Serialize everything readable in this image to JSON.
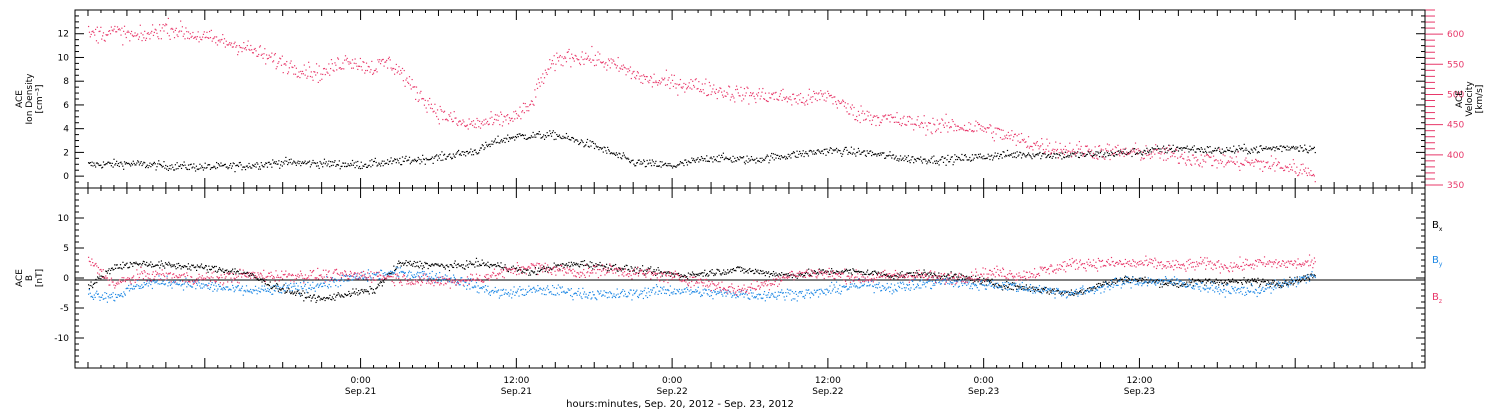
{
  "colors": {
    "black": "#000000",
    "pink": "#e8386a",
    "blue": "#1e88e5",
    "axis": "#000000"
  },
  "chart_data": [
    {
      "type": "scatter",
      "panel": "top",
      "left_axis": {
        "label_lines": [
          "ACE",
          "Ion Density",
          "[cm⁻³]"
        ],
        "ylim": [
          -1,
          14
        ],
        "major_ticks": [
          0,
          2,
          4,
          6,
          8,
          10,
          12
        ],
        "tick_labels": [
          "0",
          "2",
          "4",
          "6",
          "8",
          "10",
          "12"
        ]
      },
      "right_axis": {
        "label_lines": [
          "ACE",
          "Velocity",
          "[km/s]"
        ],
        "ylim": [
          345,
          640
        ],
        "major_ticks": [
          350,
          400,
          450,
          500,
          550,
          600
        ],
        "tick_labels": [
          "350",
          "400",
          "450",
          "500",
          "550",
          "600"
        ],
        "color": "pink"
      },
      "series": [
        {
          "color": "black",
          "axis": "left",
          "x_hours": [
            -21,
            -18,
            -15,
            -12,
            -9,
            -6,
            -3,
            0,
            3,
            6,
            9,
            10.5,
            12,
            15,
            18,
            21,
            24,
            27,
            30,
            33,
            36,
            39,
            42,
            45,
            48,
            51,
            54,
            57,
            60,
            63,
            66,
            69,
            72,
            73.5
          ],
          "y": [
            1.0,
            1.1,
            0.9,
            0.8,
            0.9,
            1.2,
            1.1,
            1.0,
            1.3,
            1.6,
            2.2,
            3.0,
            3.4,
            3.5,
            2.6,
            1.2,
            0.9,
            1.6,
            1.4,
            1.8,
            2.2,
            2.0,
            1.5,
            1.4,
            1.7,
            1.9,
            1.8,
            1.9,
            2.1,
            2.4,
            2.2,
            2.3,
            2.5,
            2.3
          ],
          "scatter": 0.35
        },
        {
          "color": "pink",
          "axis": "right",
          "x_hours": [
            -21,
            -19,
            -17,
            -15,
            -13,
            -11,
            -9,
            -7,
            -5,
            -3,
            -1,
            0,
            1,
            2,
            3,
            4,
            6,
            8,
            10,
            12,
            13,
            14,
            15,
            16,
            18,
            20,
            22,
            24,
            26,
            28,
            30,
            32,
            34,
            36,
            38,
            40,
            42,
            44,
            46,
            48,
            50,
            52,
            54,
            56,
            58,
            60,
            62,
            64,
            66,
            68,
            70,
            72,
            73.5
          ],
          "y": [
            600,
            605,
            595,
            612,
            600,
            590,
            580,
            560,
            545,
            535,
            560,
            550,
            545,
            555,
            540,
            510,
            470,
            450,
            455,
            465,
            480,
            530,
            555,
            565,
            560,
            545,
            525,
            520,
            515,
            505,
            500,
            498,
            492,
            500,
            470,
            462,
            455,
            450,
            448,
            445,
            430,
            418,
            410,
            408,
            405,
            405,
            402,
            395,
            392,
            388,
            385,
            378,
            372
          ],
          "scatter": 14
        }
      ]
    },
    {
      "type": "scatter",
      "panel": "bottom",
      "left_axis": {
        "label_lines": [
          "ACE",
          "B",
          "[nT]"
        ],
        "ylim": [
          -15,
          15
        ],
        "major_ticks": [
          -10,
          -5,
          0,
          5,
          10
        ],
        "tick_labels": [
          "-10",
          "-5",
          "0",
          "5",
          "10"
        ]
      },
      "legend": [
        {
          "name": "B",
          "sub": "x",
          "color": "black"
        },
        {
          "name": "B",
          "sub": "y",
          "color": "blue"
        },
        {
          "name": "B",
          "sub": "z",
          "color": "pink"
        }
      ],
      "series": [
        {
          "name": "Bx",
          "color": "black",
          "x_hours": [
            -21,
            -19,
            -17,
            -15,
            -13,
            -11,
            -9,
            -7,
            -5,
            -3,
            -1,
            1,
            3,
            5,
            7,
            9,
            11,
            13,
            15,
            17,
            19,
            21,
            23,
            25,
            27,
            29,
            31,
            33,
            35,
            37,
            39,
            41,
            43,
            45,
            47,
            49,
            51,
            53,
            55,
            57,
            59,
            61,
            63,
            65,
            67,
            69,
            71,
            73.5
          ],
          "y": [
            -1.5,
            2.0,
            2.5,
            2.2,
            2.0,
            1.5,
            1.0,
            -1.0,
            -2.5,
            -3.5,
            -2.5,
            -2.0,
            2.5,
            2.3,
            2.0,
            2.5,
            2.0,
            1.0,
            2.0,
            2.5,
            2.0,
            1.5,
            1.0,
            0.5,
            1.0,
            1.5,
            1.0,
            0.5,
            1.0,
            1.2,
            1.0,
            0.5,
            0.8,
            0.5,
            0.0,
            -1.0,
            -1.5,
            -2.0,
            -2.5,
            -1.0,
            0.0,
            -0.5,
            -1.0,
            -0.5,
            -0.5,
            -0.5,
            -0.8,
            0.5
          ],
          "scatter": 0.6
        },
        {
          "name": "By",
          "color": "blue",
          "x_hours": [
            -21,
            -19,
            -17,
            -15,
            -13,
            -11,
            -9,
            -7,
            -5,
            -3,
            -1,
            1,
            3,
            5,
            7,
            9,
            11,
            13,
            15,
            17,
            19,
            21,
            23,
            25,
            27,
            29,
            31,
            33,
            35,
            37,
            39,
            41,
            43,
            45,
            47,
            49,
            51,
            53,
            55,
            57,
            59,
            61,
            63,
            65,
            67,
            69,
            71,
            73.5
          ],
          "y": [
            -2.5,
            -3.0,
            -1.0,
            -0.5,
            -1.0,
            -1.5,
            -2.0,
            -2.0,
            -1.5,
            -1.0,
            0.0,
            0.5,
            1.0,
            0.5,
            0.0,
            -1.5,
            -2.5,
            -2.0,
            -2.0,
            -2.5,
            -2.8,
            -2.5,
            -2.0,
            -2.0,
            -2.5,
            -2.5,
            -2.8,
            -2.5,
            -2.5,
            -1.5,
            -1.0,
            -1.5,
            -1.0,
            -0.5,
            -1.0,
            -1.0,
            -1.5,
            -2.0,
            -2.5,
            -1.5,
            -0.5,
            -0.5,
            -0.5,
            -1.5,
            -2.0,
            -2.0,
            -1.0,
            0.5
          ],
          "scatter": 0.9
        },
        {
          "name": "Bz",
          "color": "pink",
          "x_hours": [
            -21,
            -19,
            -17,
            -15,
            -13,
            -11,
            -9,
            -7,
            -5,
            -3,
            -1,
            1,
            3,
            5,
            7,
            9,
            11,
            13,
            15,
            17,
            19,
            21,
            23,
            25,
            27,
            29,
            31,
            33,
            35,
            37,
            39,
            41,
            43,
            45,
            47,
            49,
            51,
            53,
            55,
            57,
            59,
            61,
            63,
            65,
            67,
            69,
            71,
            73.5
          ],
          "y": [
            3.0,
            -1.0,
            0.5,
            0.5,
            0.0,
            0.0,
            0.5,
            0.5,
            0.5,
            0.5,
            0.5,
            0.5,
            0.0,
            -0.5,
            -0.5,
            0.0,
            1.0,
            2.0,
            1.5,
            1.0,
            1.5,
            1.0,
            0.5,
            0.0,
            -1.0,
            -2.0,
            -1.0,
            0.5,
            1.0,
            0.5,
            0.0,
            0.5,
            0.5,
            0.0,
            0.5,
            1.0,
            0.5,
            1.5,
            2.5,
            2.5,
            2.5,
            2.5,
            2.0,
            2.5,
            2.0,
            2.5,
            2.5,
            2.5
          ],
          "scatter": 1.0
        }
      ]
    }
  ],
  "x_axis": {
    "range_hours": [
      -22,
      82
    ],
    "ticks": [
      {
        "hours": 0,
        "time": "0:00",
        "date": "Sep.21"
      },
      {
        "hours": 12,
        "time": "12:00",
        "date": "Sep.21"
      },
      {
        "hours": 24,
        "time": "0:00",
        "date": "Sep.22"
      },
      {
        "hours": 36,
        "time": "12:00",
        "date": "Sep.22"
      },
      {
        "hours": 48,
        "time": "0:00",
        "date": "Sep.23"
      },
      {
        "hours": 60,
        "time": "12:00",
        "date": "Sep.23"
      }
    ],
    "label": "hours:minutes, Sep. 20, 2012 - Sep. 23, 2012"
  }
}
